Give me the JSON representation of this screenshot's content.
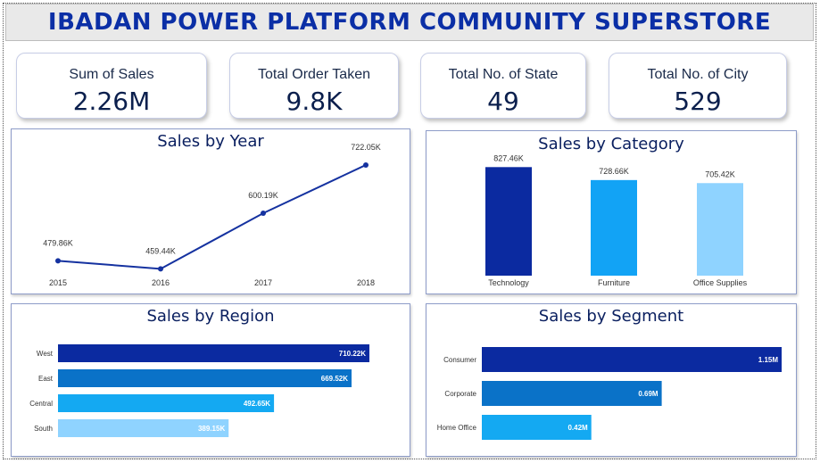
{
  "header": {
    "title": "IBADAN POWER PLATFORM COMMUNITY SUPERSTORE"
  },
  "kpis": [
    {
      "label": "Sum of Sales",
      "value": "2.26M"
    },
    {
      "label": "Total Order Taken",
      "value": "9.8K"
    },
    {
      "label": "Total No. of State",
      "value": "49"
    },
    {
      "label": "Total No. of City",
      "value": "529"
    }
  ],
  "chart_data": [
    {
      "type": "line",
      "title": "Sales by Year",
      "x": [
        "2015",
        "2016",
        "2017",
        "2018"
      ],
      "values": [
        479.86,
        459.44,
        600.19,
        722.05
      ],
      "data_labels": [
        "479.86K",
        "459.44K",
        "600.19K",
        "722.05K"
      ],
      "color": "#1532a0"
    },
    {
      "type": "bar",
      "title": "Sales by Category",
      "categories": [
        "Technology",
        "Furniture",
        "Office Supplies"
      ],
      "values": [
        827.46,
        728.66,
        705.42
      ],
      "data_labels": [
        "827.46K",
        "728.66K",
        "705.42K"
      ],
      "colors": [
        "#0b2aa0",
        "#12a3f5",
        "#8fd3ff"
      ]
    },
    {
      "type": "bar",
      "orientation": "horizontal",
      "title": "Sales by Region",
      "categories": [
        "West",
        "East",
        "Central",
        "South"
      ],
      "values": [
        710.22,
        669.52,
        492.65,
        389.15
      ],
      "data_labels": [
        "710.22K",
        "669.52K",
        "492.65K",
        "389.15K"
      ],
      "colors": [
        "#0b2aa0",
        "#0a72c8",
        "#14a9f2",
        "#8fd3ff"
      ]
    },
    {
      "type": "bar",
      "orientation": "horizontal",
      "title": "Sales by Segment",
      "categories": [
        "Consumer",
        "Corporate",
        "Home Office"
      ],
      "values": [
        1.15,
        0.69,
        0.42
      ],
      "data_labels": [
        "1.15M",
        "0.69M",
        "0.42M"
      ],
      "colors": [
        "#0b2aa0",
        "#0a72c8",
        "#14a9f2"
      ]
    }
  ]
}
